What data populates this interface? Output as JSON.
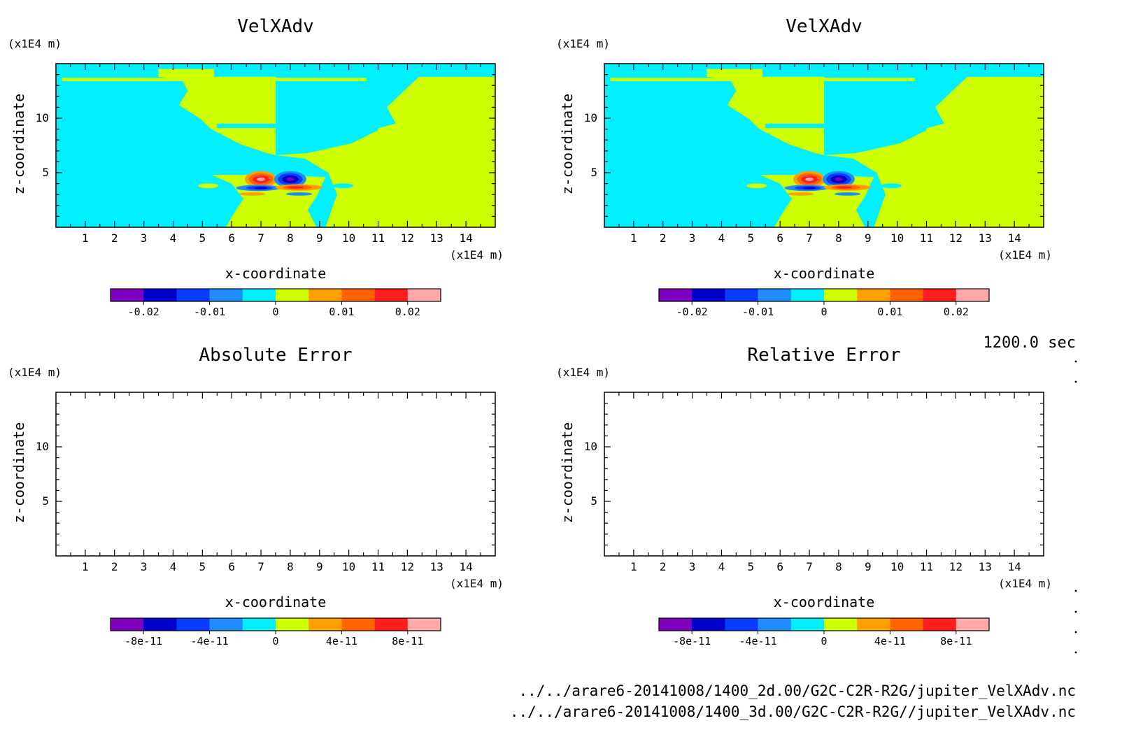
{
  "time_label": "1200.0 sec",
  "file_paths": [
    "../../arare6-20141008/1400_2d.00/G2C-C2R-R2G/jupiter_VelXAdv.nc",
    "../../arare6-20141008/1400_3d.00/G2C-C2R-R2G//jupiter_VelXAdv.nc"
  ],
  "colors": {
    "background": "#ffffff",
    "frame": "#000000",
    "colorbar_levels": [
      "#7f00bf",
      "#0000c8",
      "#0a3cff",
      "#1e8cff",
      "#00f0ff",
      "#cdff00",
      "#ffa000",
      "#ff6400",
      "#ff1e1e",
      "#ffaaaa"
    ]
  },
  "chart_data": [
    {
      "type": "heatmap",
      "title": "VelXAdv",
      "xlabel": "x-coordinate",
      "ylabel": "z-coordinate",
      "x_unit": "(x1E4 m)",
      "y_unit": "(x1E4 m)",
      "xlim": [
        0,
        15
      ],
      "ylim": [
        0,
        15
      ],
      "x_ticks": [
        "1",
        "2",
        "3",
        "4",
        "5",
        "6",
        "7",
        "8",
        "9",
        "10",
        "11",
        "12",
        "13",
        "14"
      ],
      "y_ticks": [
        "5",
        "10"
      ],
      "filled": true,
      "colorbar_ticks": [
        "-0.02",
        "-0.01",
        "0",
        "0.01",
        "0.02"
      ],
      "background_field": {
        "negative_region": "x < 7.5 (cyan)",
        "positive_region": "x > 7.5 (yellow-green)"
      },
      "features": [
        {
          "kind": "positive max",
          "x": 7.0,
          "z": 4.4,
          "value": 0.025
        },
        {
          "kind": "negative min",
          "x": 8.0,
          "z": 4.4,
          "value": -0.025
        },
        {
          "kind": "negative lobe",
          "x": 7.0,
          "z": 3.6,
          "value": -0.02
        },
        {
          "kind": "positive lobe",
          "x": 8.2,
          "z": 3.6,
          "value": 0.02
        }
      ]
    },
    {
      "type": "heatmap",
      "title": "VelXAdv",
      "xlabel": "x-coordinate",
      "ylabel": "z-coordinate",
      "x_unit": "(x1E4 m)",
      "y_unit": "(x1E4 m)",
      "xlim": [
        0,
        15
      ],
      "ylim": [
        0,
        15
      ],
      "x_ticks": [
        "1",
        "2",
        "3",
        "4",
        "5",
        "6",
        "7",
        "8",
        "9",
        "10",
        "11",
        "12",
        "13",
        "14"
      ],
      "y_ticks": [
        "5",
        "10"
      ],
      "filled": true,
      "colorbar_ticks": [
        "-0.02",
        "-0.01",
        "0",
        "0.01",
        "0.02"
      ],
      "background_field": {
        "negative_region": "x < 7.5 (cyan)",
        "positive_region": "x > 7.5 (yellow-green)"
      },
      "features": [
        {
          "kind": "positive max",
          "x": 7.0,
          "z": 4.4,
          "value": 0.025
        },
        {
          "kind": "negative min",
          "x": 8.0,
          "z": 4.4,
          "value": -0.025
        },
        {
          "kind": "negative lobe",
          "x": 7.0,
          "z": 3.6,
          "value": -0.02
        },
        {
          "kind": "positive lobe",
          "x": 8.2,
          "z": 3.6,
          "value": 0.02
        }
      ]
    },
    {
      "type": "heatmap",
      "title": "Absolute Error",
      "xlabel": "x-coordinate",
      "ylabel": "z-coordinate",
      "x_unit": "(x1E4 m)",
      "y_unit": "(x1E4 m)",
      "xlim": [
        0,
        15
      ],
      "ylim": [
        0,
        15
      ],
      "x_ticks": [
        "1",
        "2",
        "3",
        "4",
        "5",
        "6",
        "7",
        "8",
        "9",
        "10",
        "11",
        "12",
        "13",
        "14"
      ],
      "y_ticks": [
        "5",
        "10"
      ],
      "filled": false,
      "colorbar_ticks": [
        "-8e-11",
        "-4e-11",
        "0",
        "4e-11",
        "8e-11"
      ]
    },
    {
      "type": "heatmap",
      "title": "Relative Error",
      "xlabel": "x-coordinate",
      "ylabel": "z-coordinate",
      "x_unit": "(x1E4 m)",
      "y_unit": "(x1E4 m)",
      "xlim": [
        0,
        15
      ],
      "ylim": [
        0,
        15
      ],
      "x_ticks": [
        "1",
        "2",
        "3",
        "4",
        "5",
        "6",
        "7",
        "8",
        "9",
        "10",
        "11",
        "12",
        "13",
        "14"
      ],
      "y_ticks": [
        "5",
        "10"
      ],
      "filled": false,
      "colorbar_ticks": [
        "-8e-11",
        "-4e-11",
        "0",
        "4e-11",
        "8e-11"
      ]
    }
  ]
}
